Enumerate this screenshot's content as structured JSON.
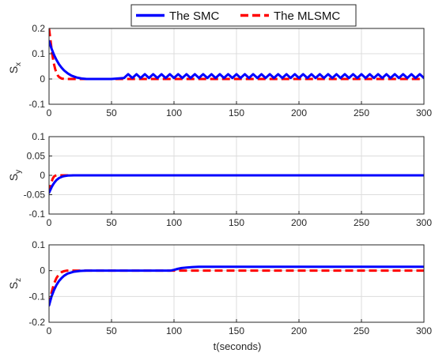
{
  "legend": {
    "smc_label": "The SMC",
    "mlsmc_label": "The MLSMC"
  },
  "colors": {
    "smc": "#0000ff",
    "mlsmc": "#ff0000",
    "grid": "#dcdcdc",
    "axis": "#262626"
  },
  "chart_data": [
    {
      "type": "line",
      "ylabel": "S",
      "ylabel_sub": "x",
      "xlabel": "",
      "xlim": [
        0,
        300
      ],
      "ylim": [
        -0.1,
        0.2
      ],
      "xticks": [
        0,
        50,
        100,
        150,
        200,
        250,
        300
      ],
      "yticks": [
        0.2,
        0.1,
        0,
        -0.1
      ],
      "ytick_labels": [
        "0.2",
        "0.1",
        "0",
        "-0.1"
      ],
      "grid": true,
      "series": [
        {
          "name": "The SMC",
          "style": "solid",
          "x": [
            0,
            2,
            4,
            6,
            8,
            10,
            12,
            15,
            18,
            22,
            26,
            30,
            40,
            50,
            55,
            60,
            63.3,
            66.7,
            70,
            73.3,
            76.7,
            80,
            83.3,
            86.7,
            90,
            93.3,
            96.7,
            100,
            103.3,
            106.7,
            110,
            113.3,
            116.7,
            120,
            123.3,
            126.7,
            130,
            133.3,
            136.7,
            140,
            143.3,
            146.7,
            150,
            153.3,
            156.7,
            160,
            163.3,
            166.7,
            170,
            173.3,
            176.7,
            180,
            183.3,
            186.7,
            190,
            193.3,
            196.7,
            200,
            203.3,
            206.7,
            210,
            213.3,
            216.7,
            220,
            223.3,
            226.7,
            230,
            233.3,
            236.7,
            240,
            243.3,
            246.7,
            250,
            253.3,
            256.7,
            260,
            263.3,
            266.7,
            270,
            273.3,
            276.7,
            280,
            283.3,
            286.7,
            290,
            293.3,
            296.7,
            300
          ],
          "y": [
            0.15,
            0.12,
            0.095,
            0.075,
            0.058,
            0.045,
            0.034,
            0.022,
            0.013,
            0.006,
            0.002,
            0.0,
            0.0,
            0.0,
            0.002,
            0.004,
            0.019,
            0.004,
            0.019,
            0.004,
            0.019,
            0.004,
            0.019,
            0.004,
            0.019,
            0.004,
            0.019,
            0.004,
            0.019,
            0.004,
            0.019,
            0.004,
            0.019,
            0.004,
            0.019,
            0.004,
            0.019,
            0.004,
            0.019,
            0.004,
            0.019,
            0.004,
            0.019,
            0.004,
            0.019,
            0.004,
            0.019,
            0.004,
            0.019,
            0.004,
            0.019,
            0.004,
            0.019,
            0.004,
            0.019,
            0.004,
            0.019,
            0.004,
            0.019,
            0.004,
            0.019,
            0.004,
            0.019,
            0.004,
            0.019,
            0.004,
            0.019,
            0.004,
            0.019,
            0.004,
            0.019,
            0.004,
            0.019,
            0.004,
            0.019,
            0.004,
            0.019,
            0.004,
            0.019,
            0.004,
            0.019,
            0.004,
            0.019,
            0.004,
            0.019,
            0.004,
            0.019,
            0.004
          ]
        },
        {
          "name": "The MLSMC",
          "style": "dashed",
          "x": [
            0,
            1,
            2,
            3,
            4,
            5,
            6,
            7,
            8,
            10,
            12,
            300
          ],
          "y": [
            0.2,
            0.16,
            0.12,
            0.085,
            0.058,
            0.038,
            0.024,
            0.014,
            0.008,
            0.002,
            0.0,
            0.0
          ]
        }
      ]
    },
    {
      "type": "line",
      "ylabel": "S",
      "ylabel_sub": "y",
      "xlabel": "",
      "xlim": [
        0,
        300
      ],
      "ylim": [
        -0.1,
        0.1
      ],
      "xticks": [
        0,
        50,
        100,
        150,
        200,
        250,
        300
      ],
      "yticks": [
        0.1,
        0.05,
        0,
        -0.05,
        -0.1
      ],
      "ytick_labels": [
        "0.1",
        "0.05",
        "0",
        "-0.05",
        "-0.1"
      ],
      "grid": true,
      "series": [
        {
          "name": "The SMC",
          "style": "solid",
          "x": [
            0,
            1,
            2,
            3,
            4,
            5,
            6,
            8,
            10,
            12,
            15,
            20,
            300
          ],
          "y": [
            -0.045,
            -0.038,
            -0.031,
            -0.025,
            -0.02,
            -0.016,
            -0.012,
            -0.007,
            -0.004,
            -0.002,
            -0.0005,
            0.0,
            0.0
          ]
        },
        {
          "name": "The MLSMC",
          "style": "dashed",
          "x": [
            0,
            1,
            2,
            3,
            4,
            5,
            6,
            8,
            300
          ],
          "y": [
            -0.045,
            -0.03,
            -0.017,
            -0.008,
            -0.003,
            -0.001,
            0.0,
            0.0,
            0.0
          ]
        }
      ]
    },
    {
      "type": "line",
      "ylabel": "S",
      "ylabel_sub": "z",
      "xlabel": "t(seconds)",
      "xlim": [
        0,
        300
      ],
      "ylim": [
        -0.2,
        0.1
      ],
      "xticks": [
        0,
        50,
        100,
        150,
        200,
        250,
        300
      ],
      "yticks": [
        0.1,
        0,
        -0.1,
        -0.2
      ],
      "ytick_labels": [
        "0.1",
        "0",
        "-0.1",
        "-0.2"
      ],
      "grid": true,
      "series": [
        {
          "name": "The SMC",
          "style": "solid",
          "x": [
            0,
            2,
            4,
            6,
            8,
            10,
            12,
            15,
            20,
            25,
            30,
            40,
            97,
            100,
            103,
            106,
            110,
            115,
            120,
            130,
            300
          ],
          "y": [
            -0.135,
            -0.1,
            -0.075,
            -0.055,
            -0.04,
            -0.029,
            -0.02,
            -0.011,
            -0.004,
            -0.001,
            0.0,
            0.0,
            0.0,
            0.003,
            0.007,
            0.01,
            0.012,
            0.014,
            0.015,
            0.015,
            0.015
          ]
        },
        {
          "name": "The MLSMC",
          "style": "dashed",
          "x": [
            0,
            2,
            4,
            6,
            8,
            10,
            12,
            14,
            300
          ],
          "y": [
            -0.135,
            -0.085,
            -0.05,
            -0.028,
            -0.014,
            -0.006,
            -0.002,
            0.0,
            0.0
          ]
        }
      ]
    }
  ]
}
